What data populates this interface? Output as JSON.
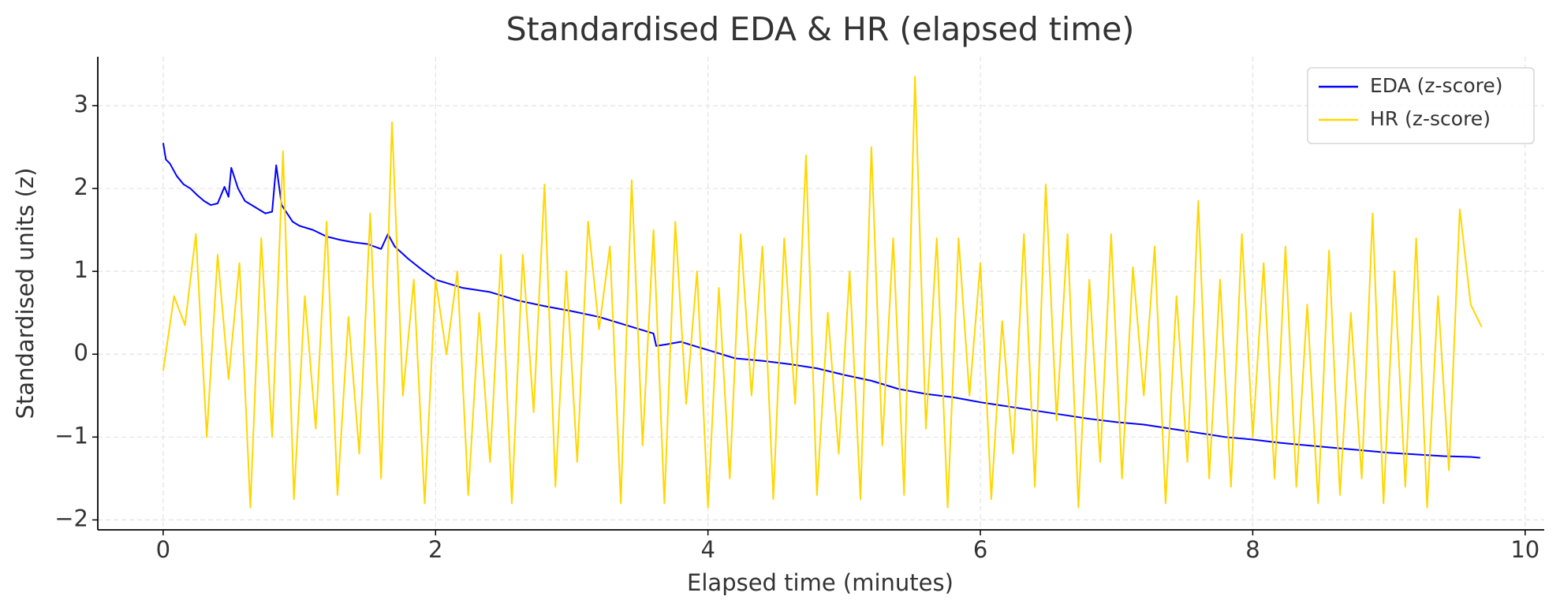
{
  "chart_data": {
    "type": "line",
    "title": "Standardised EDA & HR (elapsed time)",
    "x_label": "Elapsed time (minutes)",
    "y_label": "Standardised units (z)",
    "xlim": [
      -0.48,
      10.14
    ],
    "ylim": [
      -2.12,
      3.59
    ],
    "xticks": [
      0,
      2,
      4,
      6,
      8,
      10
    ],
    "yticks": [
      {
        "value": -2,
        "label": "−2"
      },
      {
        "value": -1,
        "label": "−1"
      },
      0,
      1,
      2,
      3
    ],
    "grid": true,
    "legend": "upper right",
    "series": [
      {
        "name": "EDA (z-score)",
        "color": "#0000ff",
        "x": [
          0,
          0.02,
          0.05,
          0.1,
          0.15,
          0.2,
          0.25,
          0.3,
          0.35,
          0.4,
          0.45,
          0.48,
          0.5,
          0.55,
          0.6,
          0.7,
          0.75,
          0.8,
          0.83,
          0.87,
          0.95,
          1.0,
          1.1,
          1.2,
          1.3,
          1.4,
          1.5,
          1.6,
          1.65,
          1.7,
          1.8,
          1.9,
          2.0,
          2.2,
          2.4,
          2.6,
          2.8,
          3.0,
          3.2,
          3.4,
          3.6,
          3.62,
          3.7,
          3.8,
          4.0,
          4.2,
          4.4,
          4.6,
          4.8,
          5.0,
          5.2,
          5.4,
          5.6,
          5.8,
          6.0,
          6.2,
          6.4,
          6.6,
          6.8,
          7.0,
          7.2,
          7.4,
          7.6,
          7.8,
          8.0,
          8.2,
          8.4,
          8.6,
          8.8,
          9.0,
          9.2,
          9.4,
          9.6,
          9.67
        ],
        "values": [
          2.55,
          2.35,
          2.3,
          2.15,
          2.05,
          2.0,
          1.92,
          1.85,
          1.8,
          1.82,
          2.02,
          1.9,
          2.25,
          2.0,
          1.85,
          1.75,
          1.7,
          1.72,
          2.28,
          1.8,
          1.6,
          1.55,
          1.5,
          1.42,
          1.38,
          1.35,
          1.33,
          1.27,
          1.45,
          1.3,
          1.15,
          1.02,
          0.9,
          0.8,
          0.75,
          0.65,
          0.58,
          0.52,
          0.45,
          0.35,
          0.25,
          0.1,
          0.12,
          0.15,
          0.05,
          -0.05,
          -0.08,
          -0.12,
          -0.17,
          -0.25,
          -0.32,
          -0.42,
          -0.48,
          -0.52,
          -0.58,
          -0.63,
          -0.68,
          -0.73,
          -0.78,
          -0.82,
          -0.85,
          -0.9,
          -0.95,
          -1.0,
          -1.03,
          -1.07,
          -1.1,
          -1.13,
          -1.16,
          -1.19,
          -1.21,
          -1.23,
          -1.24,
          -1.25
        ]
      },
      {
        "name": "HR (z-score)",
        "color": "#ffd700",
        "x": [
          0,
          0.08,
          0.16,
          0.24,
          0.32,
          0.4,
          0.48,
          0.56,
          0.64,
          0.72,
          0.8,
          0.88,
          0.96,
          1.04,
          1.12,
          1.2,
          1.28,
          1.36,
          1.44,
          1.52,
          1.6,
          1.68,
          1.76,
          1.84,
          1.92,
          2.0,
          2.08,
          2.16,
          2.24,
          2.32,
          2.4,
          2.48,
          2.56,
          2.64,
          2.72,
          2.8,
          2.88,
          2.96,
          3.04,
          3.12,
          3.2,
          3.28,
          3.36,
          3.44,
          3.52,
          3.6,
          3.68,
          3.76,
          3.84,
          3.92,
          4.0,
          4.08,
          4.16,
          4.24,
          4.32,
          4.4,
          4.48,
          4.56,
          4.64,
          4.72,
          4.8,
          4.88,
          4.96,
          5.04,
          5.12,
          5.2,
          5.28,
          5.36,
          5.44,
          5.52,
          5.6,
          5.68,
          5.76,
          5.84,
          5.92,
          6.0,
          6.08,
          6.16,
          6.24,
          6.32,
          6.4,
          6.48,
          6.56,
          6.64,
          6.72,
          6.8,
          6.88,
          6.96,
          7.04,
          7.12,
          7.2,
          7.28,
          7.36,
          7.44,
          7.52,
          7.6,
          7.68,
          7.76,
          7.84,
          7.92,
          8.0,
          8.08,
          8.16,
          8.24,
          8.32,
          8.4,
          8.48,
          8.56,
          8.64,
          8.72,
          8.8,
          8.88,
          8.96,
          9.04,
          9.12,
          9.2,
          9.28,
          9.36,
          9.44,
          9.52,
          9.6,
          9.68
        ],
        "values": [
          -0.2,
          0.7,
          0.35,
          1.45,
          -1.0,
          1.2,
          -0.3,
          1.1,
          -1.85,
          1.4,
          -1.0,
          2.45,
          -1.75,
          0.7,
          -0.9,
          1.6,
          -1.7,
          0.45,
          -1.2,
          1.7,
          -1.5,
          2.8,
          -0.5,
          0.9,
          -1.8,
          0.9,
          0.0,
          1.0,
          -1.7,
          0.5,
          -1.3,
          1.2,
          -1.8,
          1.2,
          -0.7,
          2.05,
          -1.6,
          1.0,
          -1.3,
          1.6,
          0.3,
          1.3,
          -1.8,
          2.1,
          -1.1,
          1.5,
          -1.8,
          1.6,
          -0.6,
          1.0,
          -1.85,
          0.8,
          -1.5,
          1.45,
          -0.5,
          1.3,
          -1.75,
          1.4,
          -0.6,
          2.4,
          -1.7,
          0.5,
          -1.2,
          1.0,
          -1.75,
          2.5,
          -1.1,
          1.4,
          -1.7,
          3.35,
          -0.9,
          1.4,
          -1.85,
          1.4,
          -0.5,
          1.1,
          -1.75,
          0.4,
          -1.2,
          1.45,
          -1.6,
          2.05,
          -0.8,
          1.45,
          -1.85,
          0.9,
          -1.3,
          1.45,
          -1.5,
          1.05,
          -0.5,
          1.3,
          -1.8,
          0.7,
          -1.3,
          1.85,
          -1.5,
          0.9,
          -1.6,
          1.45,
          -1.0,
          1.1,
          -1.5,
          1.3,
          -1.6,
          0.6,
          -1.8,
          1.25,
          -1.7,
          0.5,
          -1.5,
          1.7,
          -1.8,
          1.0,
          -1.6,
          1.4,
          -1.85,
          0.7,
          -1.4,
          1.75,
          0.6,
          0.33
        ]
      }
    ]
  }
}
